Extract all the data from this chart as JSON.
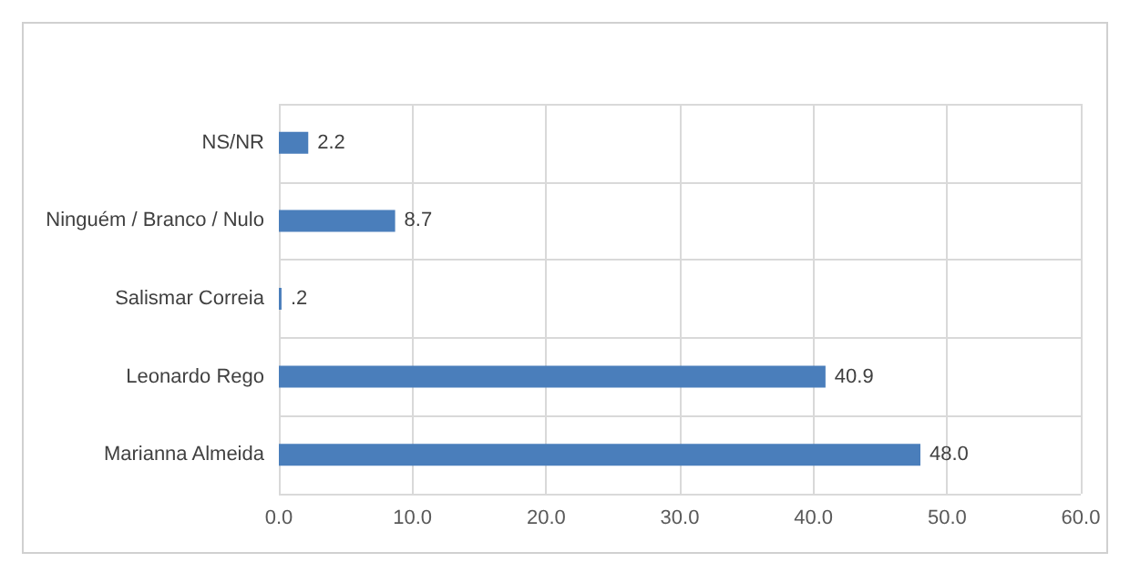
{
  "chart_data": {
    "type": "bar",
    "orientation": "horizontal",
    "categories": [
      "NS/NR",
      "Ninguém / Branco / Nulo",
      "Salismar Correia",
      "Leonardo Rego",
      "Marianna Almeida"
    ],
    "values": [
      2.2,
      8.7,
      0.2,
      40.9,
      48.0
    ],
    "value_labels": [
      "2.2",
      "8.7",
      ".2",
      "40.9",
      "48.0"
    ],
    "color": "#4a7ebb",
    "xlim": [
      0,
      60
    ],
    "xticks": [
      {
        "value": 0,
        "label": "0.0"
      },
      {
        "value": 10,
        "label": "10.0"
      },
      {
        "value": 20,
        "label": "20.0"
      },
      {
        "value": 30,
        "label": "30.0"
      },
      {
        "value": 40,
        "label": "40.0"
      },
      {
        "value": 50,
        "label": "50.0"
      },
      {
        "value": 60,
        "label": "60.0"
      }
    ],
    "grid": true
  }
}
